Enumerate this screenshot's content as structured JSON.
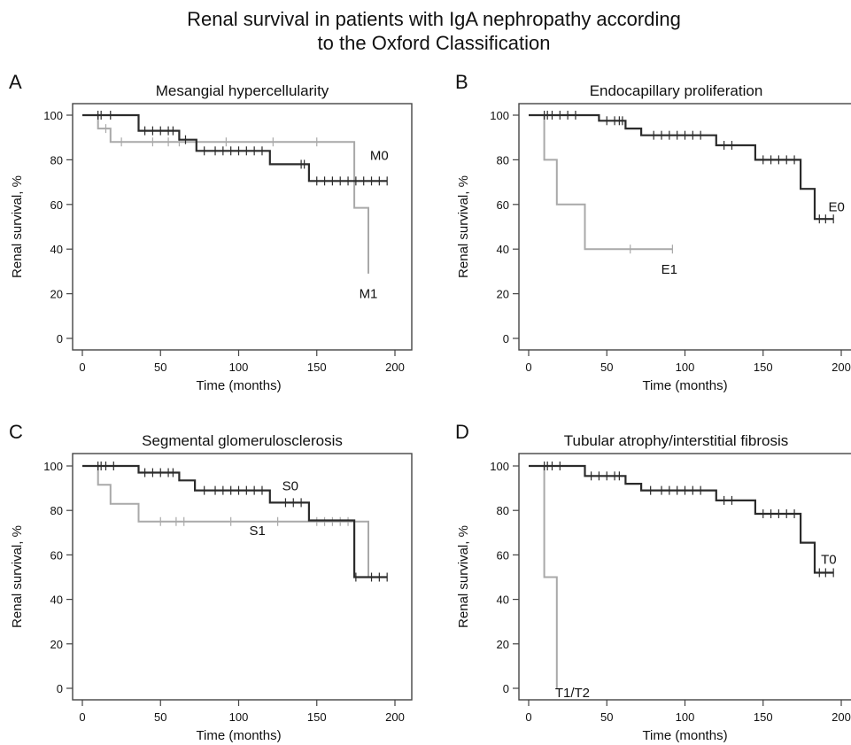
{
  "figure_title": [
    "Renal survival in patients with IgA nephropathy according",
    "to the Oxford Classification"
  ],
  "colors": {
    "dark": "#2b2b2b",
    "light": "#a9a9a9",
    "frame": "#444444",
    "text": "#111111"
  },
  "chart_data": [
    {
      "type": "line",
      "step": true,
      "panel_letter": "A",
      "title": "Mesangial hypercellularity",
      "xlabel": "Time (months)",
      "ylabel": "Renal survival, %",
      "xlim": [
        -8,
        210
      ],
      "ylim": [
        -5,
        107
      ],
      "xticks": [
        0,
        50,
        100,
        150,
        200
      ],
      "yticks": [
        0,
        20,
        40,
        60,
        80,
        100
      ],
      "grid": false,
      "series": [
        {
          "name": "M0",
          "color_role": "dark",
          "x": [
            0,
            36,
            36,
            62,
            62,
            73,
            73,
            120,
            120,
            145,
            145,
            195
          ],
          "y": [
            100,
            100,
            93,
            93,
            89,
            89,
            84,
            84,
            78,
            78,
            70.5,
            70.5
          ],
          "censor_x": [
            10,
            12,
            18,
            40,
            45,
            50,
            55,
            58,
            66,
            78,
            85,
            90,
            95,
            100,
            105,
            110,
            115,
            140,
            142,
            150,
            155,
            160,
            165,
            170,
            175,
            180,
            185,
            190,
            195
          ],
          "label_at": [
            190,
            82
          ]
        },
        {
          "name": "M1",
          "color_role": "light",
          "x": [
            0,
            10,
            10,
            18,
            18,
            174,
            174,
            183,
            183
          ],
          "y": [
            100,
            100,
            94,
            94,
            88,
            88,
            58.5,
            58.5,
            29
          ],
          "censor_x": [
            15,
            25,
            45,
            55,
            62,
            92,
            122,
            150
          ],
          "label_at": [
            183,
            20
          ]
        }
      ]
    },
    {
      "type": "line",
      "step": true,
      "panel_letter": "B",
      "title": "Endocapillary proliferation",
      "xlabel": "Time (months)",
      "ylabel": "Renal survival, %",
      "xlim": [
        -8,
        210
      ],
      "ylim": [
        -5,
        107
      ],
      "xticks": [
        0,
        50,
        100,
        150,
        200
      ],
      "yticks": [
        0,
        20,
        40,
        60,
        80,
        100
      ],
      "grid": false,
      "series": [
        {
          "name": "E0",
          "color_role": "dark",
          "x": [
            0,
            45,
            45,
            62,
            62,
            72,
            72,
            120,
            120,
            145,
            145,
            174,
            174,
            183,
            183,
            195
          ],
          "y": [
            100,
            100,
            97.5,
            97.5,
            94,
            94,
            91,
            91,
            86.5,
            86.5,
            80,
            80,
            67,
            67,
            53.5,
            53.5
          ],
          "censor_x": [
            10,
            12,
            15,
            20,
            25,
            30,
            50,
            55,
            58,
            60,
            80,
            85,
            90,
            95,
            100,
            105,
            110,
            125,
            130,
            150,
            155,
            160,
            165,
            170,
            186,
            190,
            195
          ],
          "label_at": [
            197,
            59
          ]
        },
        {
          "name": "E1",
          "color_role": "light",
          "x": [
            0,
            10,
            10,
            18,
            18,
            36,
            36,
            92
          ],
          "y": [
            100,
            100,
            80,
            80,
            60,
            60,
            40,
            40
          ],
          "censor_x": [
            65,
            92
          ],
          "label_at": [
            90,
            31
          ]
        }
      ]
    },
    {
      "type": "line",
      "step": true,
      "panel_letter": "C",
      "title": "Segmental glomerulosclerosis",
      "xlabel": "Time (months)",
      "ylabel": "Renal survival, %",
      "xlim": [
        -8,
        210
      ],
      "ylim": [
        -5,
        107
      ],
      "xticks": [
        0,
        50,
        100,
        150,
        200
      ],
      "yticks": [
        0,
        20,
        40,
        60,
        80,
        100
      ],
      "grid": false,
      "series": [
        {
          "name": "S0",
          "color_role": "dark",
          "x": [
            0,
            36,
            36,
            62,
            62,
            72,
            72,
            120,
            120,
            145,
            145,
            174,
            174,
            195
          ],
          "y": [
            100,
            100,
            97,
            97,
            93.5,
            93.5,
            89,
            89,
            83.5,
            83.5,
            75.5,
            75.5,
            50,
            50
          ],
          "censor_x": [
            10,
            12,
            15,
            20,
            40,
            45,
            50,
            55,
            58,
            78,
            85,
            90,
            95,
            100,
            105,
            110,
            115,
            130,
            135,
            140,
            175,
            185,
            190,
            195
          ],
          "label_at": [
            133,
            91
          ]
        },
        {
          "name": "S1",
          "color_role": "light",
          "x": [
            0,
            10,
            10,
            18,
            18,
            36,
            36,
            183,
            183,
            192
          ],
          "y": [
            100,
            100,
            91.5,
            91.5,
            83,
            83,
            75,
            75,
            50,
            50
          ],
          "censor_x": [
            50,
            60,
            65,
            95,
            125,
            150,
            155,
            160,
            165,
            170
          ],
          "label_at": [
            112,
            71
          ]
        }
      ]
    },
    {
      "type": "line",
      "step": true,
      "panel_letter": "D",
      "title": "Tubular atrophy/interstitial fibrosis",
      "xlabel": "Time (months)",
      "ylabel": "Renal survival, %",
      "xlim": [
        -8,
        210
      ],
      "ylim": [
        -5,
        107
      ],
      "xticks": [
        0,
        50,
        100,
        150,
        200
      ],
      "yticks": [
        0,
        20,
        40,
        60,
        80,
        100
      ],
      "grid": false,
      "series": [
        {
          "name": "T0",
          "color_role": "dark",
          "x": [
            0,
            36,
            36,
            62,
            62,
            72,
            72,
            120,
            120,
            145,
            145,
            174,
            174,
            183,
            183,
            195
          ],
          "y": [
            100,
            100,
            95.5,
            95.5,
            92,
            92,
            89,
            89,
            84.5,
            84.5,
            78.5,
            78.5,
            65.5,
            65.5,
            52,
            52
          ],
          "censor_x": [
            10,
            12,
            15,
            20,
            40,
            45,
            50,
            55,
            58,
            78,
            85,
            90,
            95,
            100,
            105,
            110,
            125,
            130,
            150,
            155,
            160,
            165,
            170,
            186,
            190,
            195
          ],
          "label_at": [
            192,
            58
          ]
        },
        {
          "name": "T1/T2",
          "color_role": "light",
          "x": [
            0,
            10,
            10,
            18,
            18
          ],
          "y": [
            100,
            100,
            50,
            50,
            0
          ],
          "censor_x": [],
          "label_at": [
            28,
            -2
          ]
        }
      ]
    }
  ]
}
